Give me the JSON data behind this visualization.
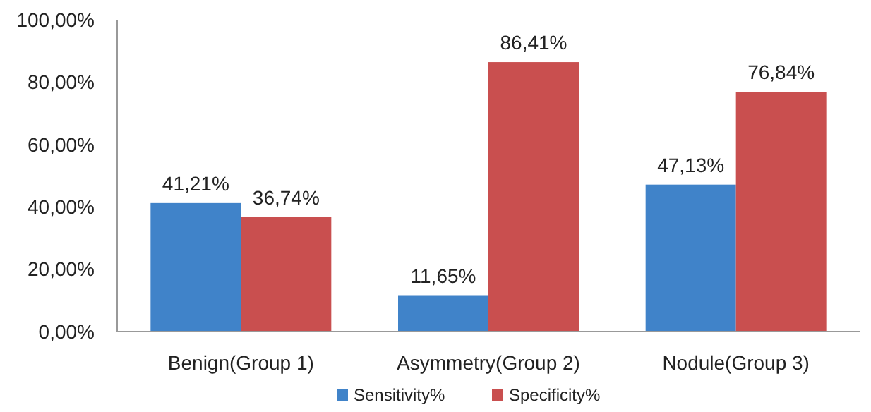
{
  "chart_data": {
    "type": "bar",
    "categories": [
      "Benign(Group 1)",
      "Asymmetry(Group 2)",
      "Nodule(Group 3)"
    ],
    "series": [
      {
        "name": "Sensitivity%",
        "color": "#4083c9",
        "values": [
          41.21,
          11.65,
          47.13
        ],
        "value_labels": [
          "41,21%",
          "11,65%",
          "47,13%"
        ]
      },
      {
        "name": "Specificity%",
        "color": "#c94f4f",
        "values": [
          36.74,
          86.41,
          76.84
        ],
        "value_labels": [
          "36,74%",
          "86,41%",
          "76,84%"
        ]
      }
    ],
    "ylim": [
      0,
      100
    ],
    "yticks": [
      {
        "value": 0,
        "label": "0,00%"
      },
      {
        "value": 20,
        "label": "20,00%"
      },
      {
        "value": 40,
        "label": "40,00%"
      },
      {
        "value": 60,
        "label": "60,00%"
      },
      {
        "value": 80,
        "label": "80,00%"
      },
      {
        "value": 100,
        "label": "100,00%"
      }
    ],
    "grid": false,
    "legend": "bottom"
  }
}
